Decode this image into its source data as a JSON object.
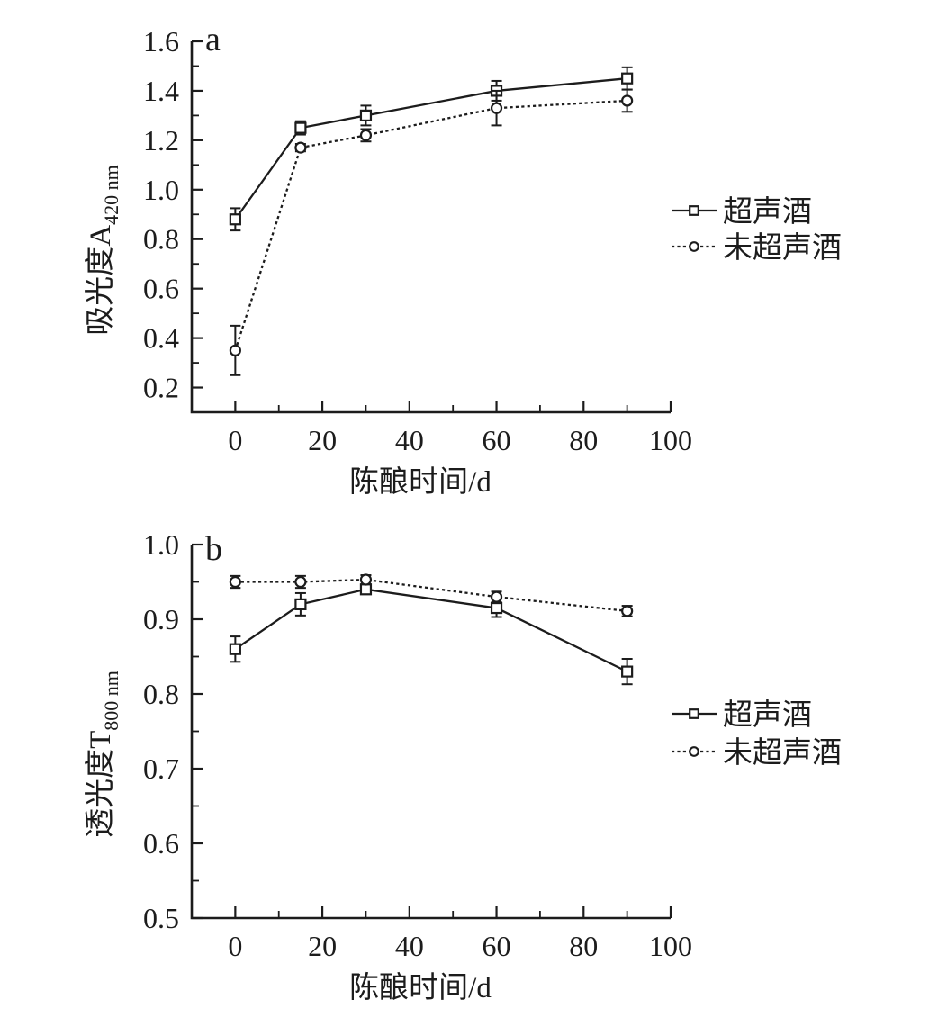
{
  "figure": {
    "background": "#ffffff",
    "ink": "#1c1c1c"
  },
  "chart_data": [
    {
      "type": "line",
      "panel_label": "a",
      "xlabel": "陈酿时间/d",
      "ylabel": "吸光度A",
      "ylabel_subscript": "420 nm",
      "x": [
        0,
        15,
        30,
        60,
        90
      ],
      "series": [
        {
          "name": "超声酒",
          "marker": "square",
          "line_style": "solid",
          "values": [
            0.88,
            1.25,
            1.3,
            1.4,
            1.45
          ],
          "errors": [
            0.045,
            0.027,
            0.04,
            0.04,
            0.045
          ]
        },
        {
          "name": "未超声酒",
          "marker": "circle",
          "line_style": "dashed",
          "values": [
            0.35,
            1.17,
            1.22,
            1.33,
            1.36
          ],
          "errors": [
            0.1,
            0.015,
            0.025,
            0.07,
            0.045
          ]
        }
      ],
      "xlim": [
        -10,
        100
      ],
      "ylim": [
        0.1,
        1.6
      ],
      "xticks": [
        0,
        20,
        40,
        60,
        80,
        100
      ],
      "yticks": [
        0.2,
        0.4,
        0.6,
        0.8,
        1.0,
        1.2,
        1.4,
        1.6
      ],
      "minor_xticks": [
        10,
        30,
        50,
        70,
        90
      ],
      "minor_yticks": [
        0.3,
        0.5,
        0.7,
        0.9,
        1.1,
        1.3,
        1.5
      ],
      "grid": false,
      "legend_position": "right-middle"
    },
    {
      "type": "line",
      "panel_label": "b",
      "xlabel": "陈酿时间/d",
      "ylabel": "透光度T",
      "ylabel_subscript": "800 nm",
      "x": [
        0,
        15,
        30,
        60,
        90
      ],
      "series": [
        {
          "name": "超声酒",
          "marker": "square",
          "line_style": "solid",
          "values": [
            0.86,
            0.92,
            0.94,
            0.915,
            0.83
          ],
          "errors": [
            0.017,
            0.015,
            0.006,
            0.012,
            0.017
          ]
        },
        {
          "name": "未超声酒",
          "marker": "circle",
          "line_style": "dashed",
          "values": [
            0.95,
            0.95,
            0.953,
            0.93,
            0.911
          ],
          "errors": [
            0.008,
            0.008,
            0.006,
            0.007,
            0.007
          ]
        }
      ],
      "xlim": [
        -10,
        100
      ],
      "ylim": [
        0.5,
        1.0
      ],
      "xticks": [
        0,
        20,
        40,
        60,
        80,
        100
      ],
      "yticks": [
        0.5,
        0.6,
        0.7,
        0.8,
        0.9,
        1.0
      ],
      "minor_xticks": [
        10,
        30,
        50,
        70,
        90
      ],
      "minor_yticks": [
        0.55,
        0.65,
        0.75,
        0.85,
        0.95
      ],
      "grid": false,
      "legend_position": "right-middle"
    }
  ]
}
